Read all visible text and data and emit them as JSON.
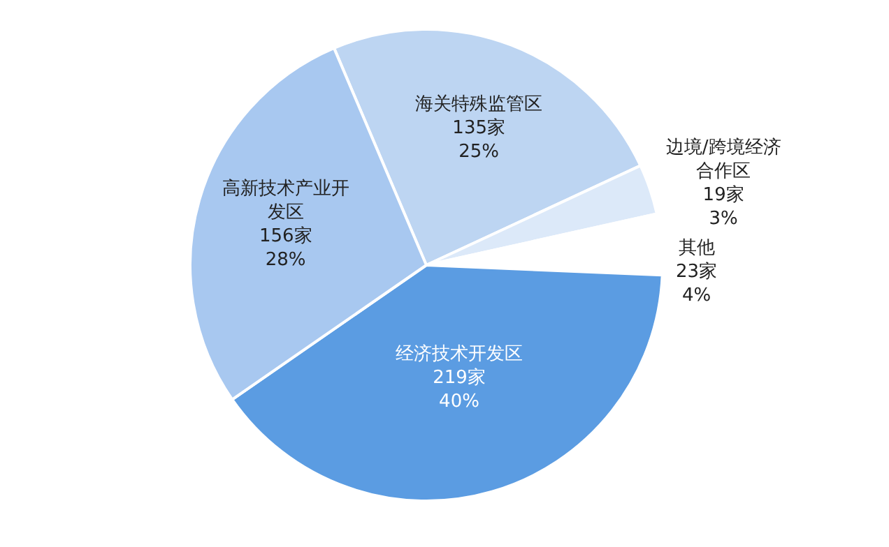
{
  "chart_data": {
    "type": "pie",
    "categories": [
      "海关特殊监管区",
      "边境/跨境经济合作区",
      "其他",
      "经济技术开发区",
      "高新技术产业开发区"
    ],
    "values": [
      135,
      19,
      23,
      219,
      156
    ],
    "value_labels": [
      "135家\n25%",
      "19家\n3%",
      "23家\n4%",
      "219家\n40%",
      "156家\n28%"
    ],
    "colors": [
      "#bdd5f2",
      "#dce9f9",
      "#ffffff",
      "#5b9ce2",
      "#a8c8f0"
    ],
    "legend": false
  }
}
